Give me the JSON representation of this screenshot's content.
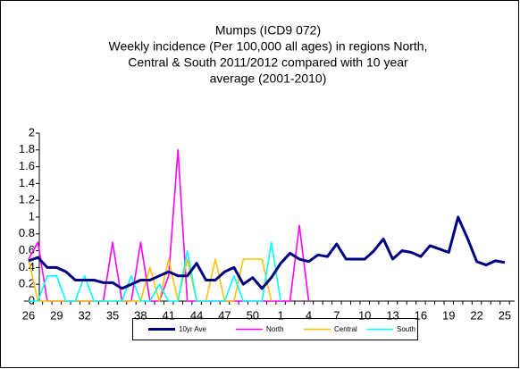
{
  "chart_data": {
    "type": "line",
    "title": "Mumps (ICD9 072)",
    "subtitle": [
      "Weekly incidence  (Per 100,000 all ages) in regions North,",
      "Central & South 2011/2012 compared with 10 year",
      "average (2001-2010)"
    ],
    "categories": [
      26,
      null,
      null,
      29,
      null,
      null,
      32,
      null,
      null,
      35,
      null,
      null,
      38,
      null,
      null,
      41,
      null,
      null,
      44,
      null,
      null,
      47,
      null,
      null,
      50,
      null,
      null,
      1,
      null,
      null,
      4,
      null,
      null,
      7,
      null,
      null,
      10,
      null,
      null,
      13,
      null,
      null,
      16,
      null,
      null,
      19,
      null,
      null,
      22,
      null,
      null,
      25
    ],
    "series": [
      {
        "name": "10yr Ave",
        "color": "#000080",
        "values": [
          0.48,
          0.52,
          0.4,
          0.4,
          0.35,
          0.25,
          0.25,
          0.25,
          0.22,
          0.22,
          0.15,
          0.2,
          0.25,
          0.25,
          0.3,
          0.35,
          0.3,
          0.3,
          0.45,
          0.25,
          0.25,
          0.35,
          0.4,
          0.2,
          0.28,
          0.15,
          0.28,
          0.45,
          0.57,
          0.5,
          0.47,
          0.55,
          0.53,
          0.68,
          0.5,
          0.5,
          0.5,
          0.6,
          0.74,
          0.5,
          0.6,
          0.58,
          0.53,
          0.66,
          0.62,
          0.58,
          1.0,
          0.75,
          0.47,
          0.43,
          0.48,
          0.46
        ]
      },
      {
        "name": "North",
        "color": "#ff00ff",
        "values": [
          0.5,
          0.7,
          0,
          0,
          0,
          0,
          0,
          0,
          0,
          0.7,
          0,
          0,
          0.7,
          0,
          0,
          0.3,
          1.8,
          0,
          0,
          0,
          0,
          0,
          0,
          0,
          0,
          0,
          0,
          0,
          0,
          0.9,
          0,
          null,
          null,
          null,
          null,
          null,
          null,
          null,
          null,
          null,
          null,
          null,
          null,
          null,
          null,
          null,
          null,
          null,
          null,
          null,
          null,
          null
        ]
      },
      {
        "name": "Central",
        "color": "#ffc000",
        "values": [
          0.5,
          0,
          0,
          0,
          0,
          0,
          0,
          0,
          0,
          0,
          0,
          0,
          0,
          0.4,
          0,
          0.5,
          0,
          0.5,
          0,
          0,
          0.5,
          0,
          0,
          0.5,
          0.5,
          0.5,
          0,
          null,
          null,
          null,
          null,
          null,
          null,
          null,
          null,
          null,
          null,
          null,
          null,
          null,
          null,
          null,
          null,
          null,
          null,
          null,
          null,
          null,
          null,
          null,
          null,
          null
        ]
      },
      {
        "name": "South",
        "color": "#00ffff",
        "values": [
          0,
          0,
          0.3,
          0.3,
          0,
          0,
          0.3,
          0,
          0,
          0,
          0,
          0.3,
          0,
          0,
          0.2,
          0,
          0,
          0.6,
          0,
          0,
          0,
          0,
          0.3,
          0,
          0,
          0,
          0.7,
          0,
          null,
          null,
          null,
          null,
          null,
          null,
          null,
          null,
          null,
          null,
          null,
          null,
          null,
          null,
          null,
          null,
          null,
          null,
          null,
          null,
          null,
          null,
          null,
          null
        ]
      }
    ],
    "ylim": [
      0,
      2
    ],
    "yticks": [
      0,
      0.2,
      0.4,
      0.6,
      0.8,
      1,
      1.2,
      1.4,
      1.6,
      1.8,
      2
    ]
  }
}
